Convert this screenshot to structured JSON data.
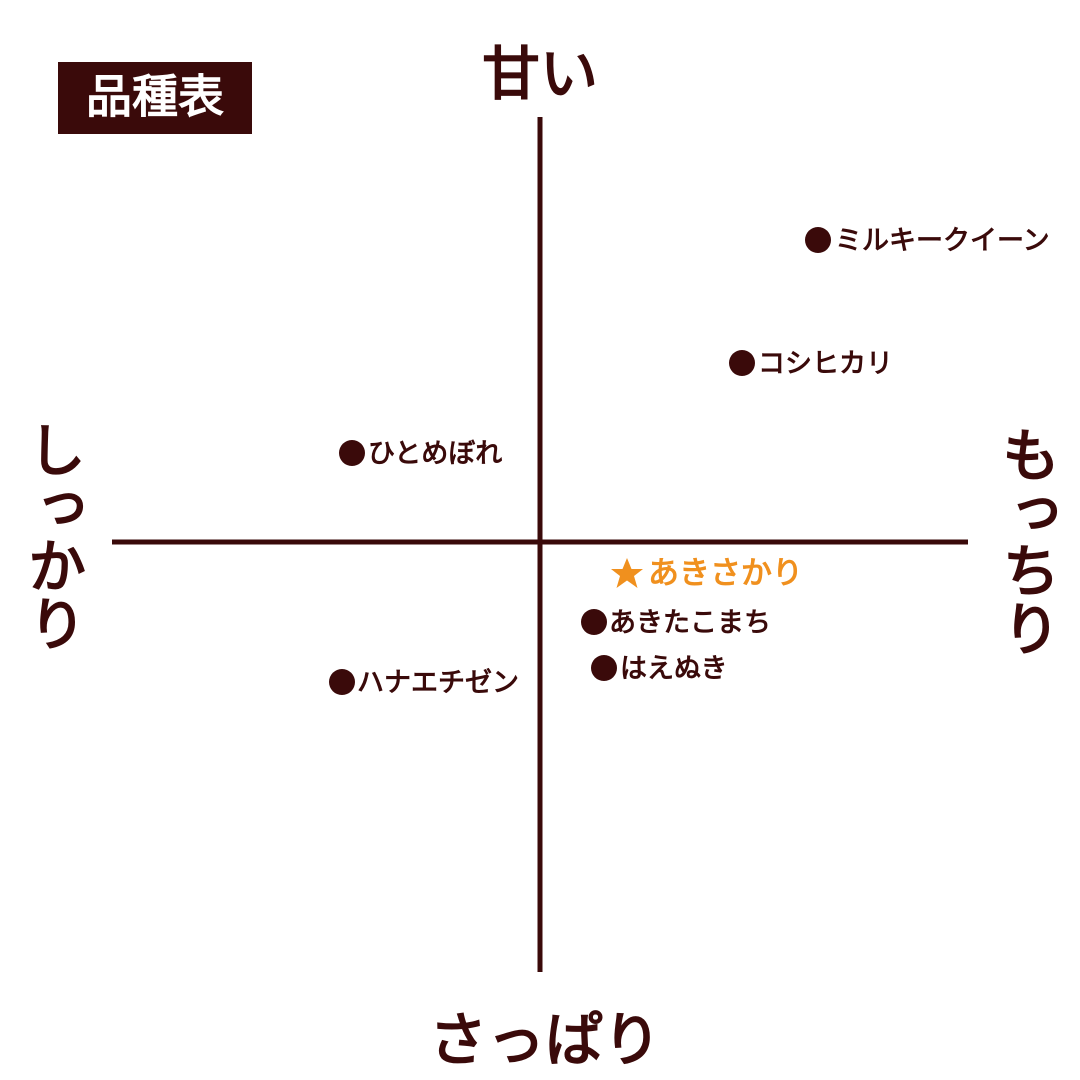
{
  "title": "品種表",
  "axes": {
    "top": "甘い",
    "bottom": "さっぱり",
    "left": "しっかり",
    "right": "もっちり"
  },
  "items": [
    {
      "label": "ミルキークイーン"
    },
    {
      "label": "コシヒカリ"
    },
    {
      "label": "ひとめぼれ"
    },
    {
      "label": "あきさかり",
      "highlight": true
    },
    {
      "label": "あきたこまち"
    },
    {
      "label": "はえぬき"
    },
    {
      "label": "ハナエチゼン"
    }
  ]
}
